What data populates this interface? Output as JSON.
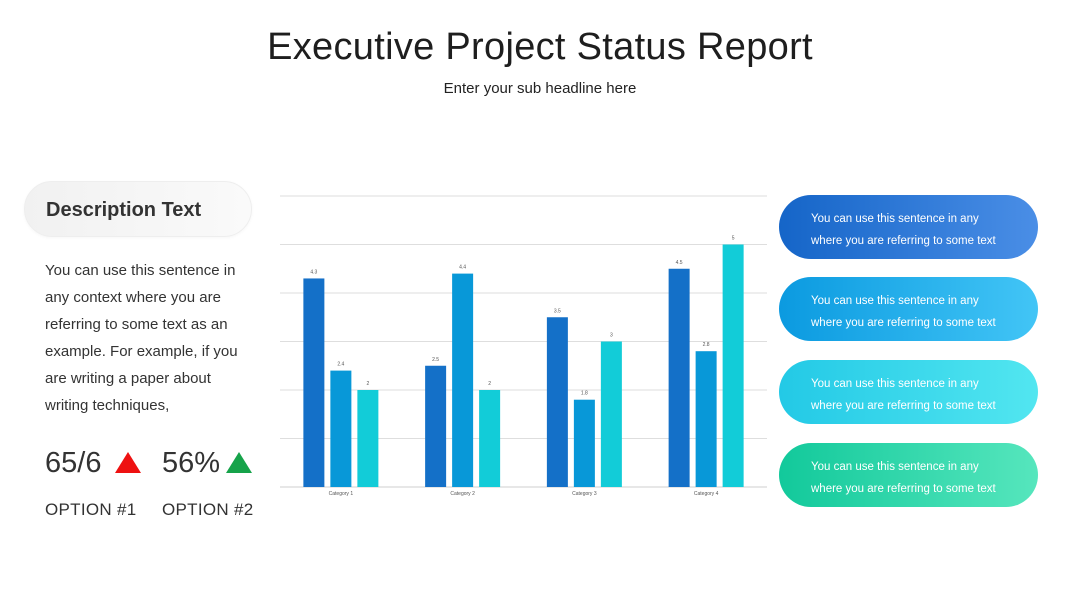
{
  "header": {
    "title": "Executive Project Status Report",
    "subtitle": "Enter your sub headline here"
  },
  "left_panel": {
    "pill_label": "Description Text",
    "body_lines": [
      "You can use this sentence in",
      "any context where you are",
      "referring to some text as an",
      "example. For example, if you",
      "are writing a paper about",
      "writing techniques,"
    ],
    "stats": [
      {
        "value": "65/6",
        "direction": "up",
        "color": "#ee1111",
        "option": "OPTION #1",
        "icon": "triangle-up-icon"
      },
      {
        "value": "56%",
        "direction": "up",
        "color": "#16a34a",
        "option": "OPTION #2",
        "icon": "triangle-up-icon"
      }
    ]
  },
  "chart_data": {
    "type": "bar",
    "categories": [
      "Category 1",
      "Category 2",
      "Category 3",
      "Category 4"
    ],
    "series": [
      {
        "values": [
          4.3,
          2.5,
          3.5,
          4.5
        ],
        "color": "#1470c8"
      },
      {
        "values": [
          2.4,
          4.4,
          1.8,
          2.8
        ],
        "color": "#0898d8"
      },
      {
        "values": [
          2,
          2,
          3,
          5
        ],
        "color": "#12ccd8"
      }
    ],
    "data_labels": [
      [
        "4.3",
        "2.5",
        "3.5",
        "4.5"
      ],
      [
        "2.4",
        "4.4",
        "1.8",
        "2.8"
      ],
      [
        "2",
        "2",
        "3",
        "5"
      ]
    ],
    "ylim": [
      0,
      6
    ],
    "grid": true,
    "legend": "none",
    "xlabel": "",
    "ylabel": ""
  },
  "callouts": [
    {
      "line1": "You can use this sentence in any",
      "line2": "where you are referring to some text"
    },
    {
      "line1": "You can use this sentence in any",
      "line2": "where you are referring to some text"
    },
    {
      "line1": "You can use this sentence in any",
      "line2": "where you are referring to some text"
    },
    {
      "line1": "You can use this sentence in any",
      "line2": "where you are referring to some text"
    }
  ]
}
